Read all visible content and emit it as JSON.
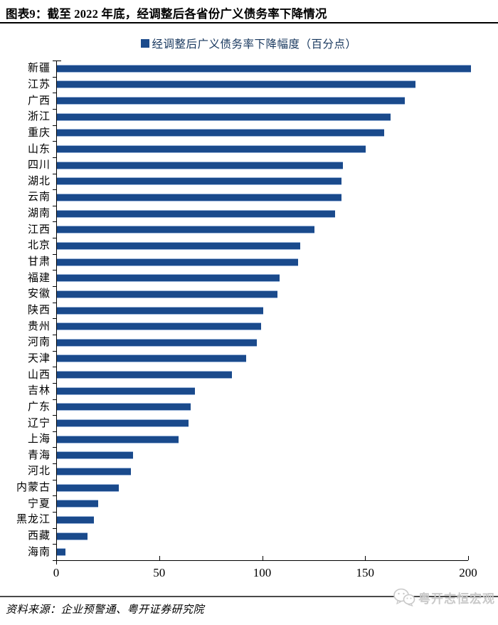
{
  "header": {
    "title": "图表9：截至 2022 年底，经调整后各省份广义债务率下降情况"
  },
  "legend": {
    "label": "经调整后广义债务率下降幅度（百分点）"
  },
  "chart_data": {
    "type": "bar",
    "orientation": "horizontal",
    "title": "经调整后广义债务率下降幅度（百分点）",
    "categories": [
      "新疆",
      "江苏",
      "广西",
      "浙江",
      "重庆",
      "山东",
      "四川",
      "湖北",
      "云南",
      "湖南",
      "江西",
      "北京",
      "甘肃",
      "福建",
      "安徽",
      "陕西",
      "贵州",
      "河南",
      "天津",
      "山西",
      "吉林",
      "广东",
      "辽宁",
      "上海",
      "青海",
      "河北",
      "内蒙古",
      "宁夏",
      "黑龙江",
      "西藏",
      "海南"
    ],
    "values": [
      201,
      174,
      169,
      162,
      159,
      150,
      139,
      138,
      138,
      135,
      125,
      118,
      117,
      108,
      107,
      100,
      99,
      97,
      92,
      85,
      67,
      65,
      64,
      59,
      37,
      36,
      30,
      20,
      18,
      15,
      4
    ],
    "xlim": [
      0,
      200
    ],
    "x_ticks": [
      0,
      50,
      100,
      150,
      200
    ],
    "grid": false,
    "legend_position": "top-center",
    "bar_color": "#1A4A8C"
  },
  "footer": {
    "source": "资料来源：企业预警通、粤开证券研究院",
    "watermark": "粤开志恒宏观"
  },
  "colors": {
    "bar": "#1A4A8C",
    "legend_text": "#17375e",
    "axis": "#000000",
    "watermark": "#c9c9c9"
  }
}
